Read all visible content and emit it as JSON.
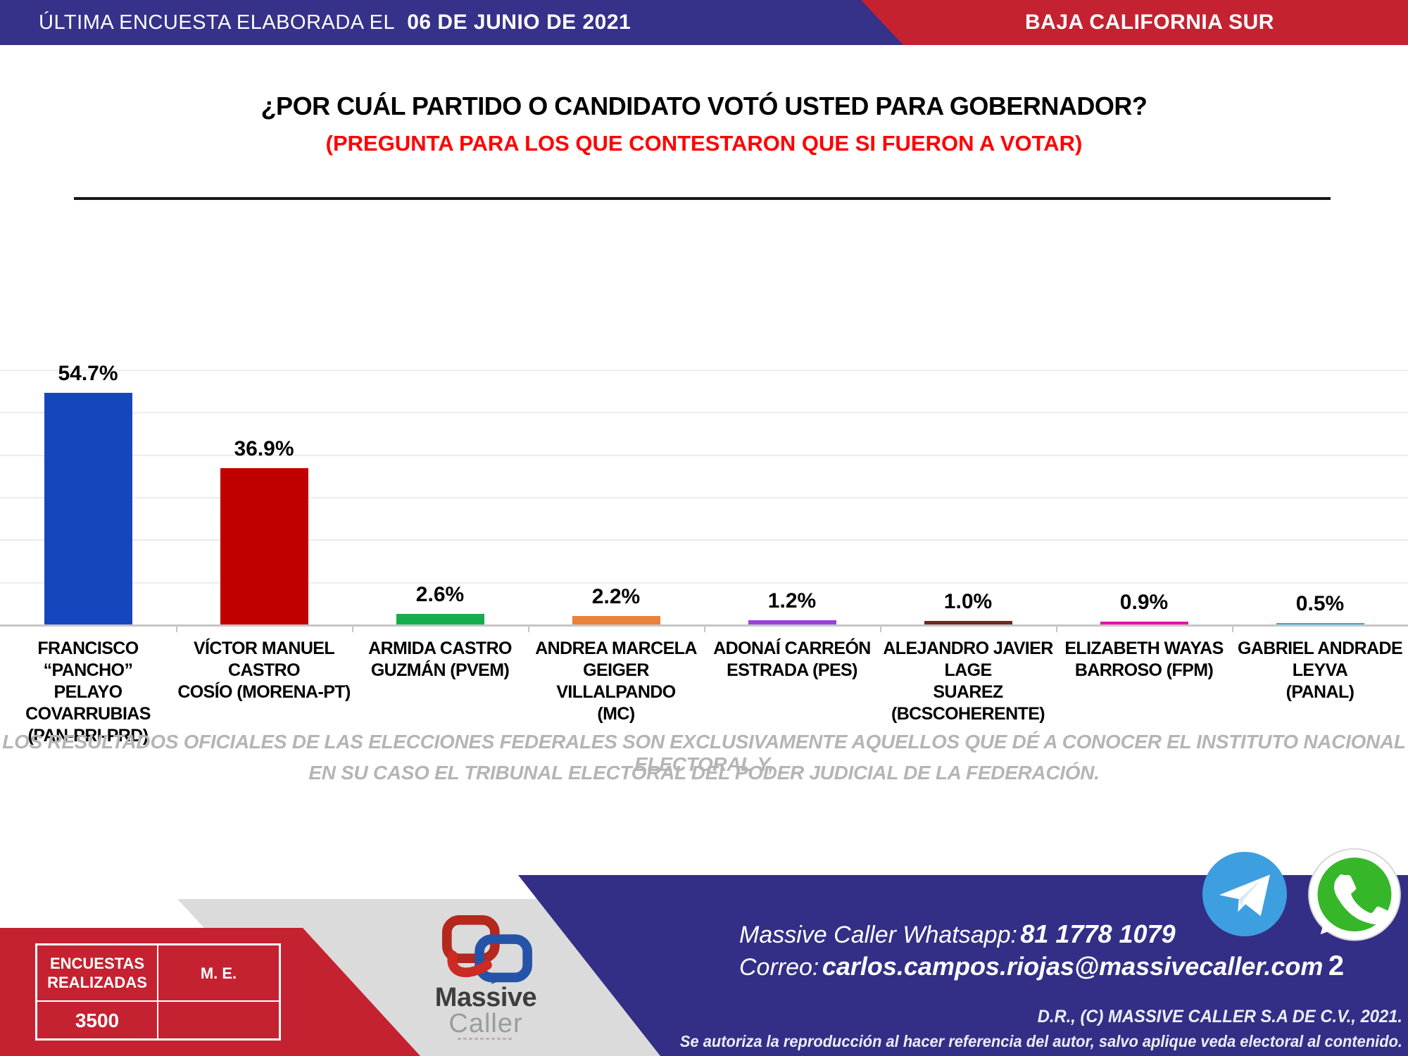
{
  "theme": {
    "banner_blue": "#363189",
    "banner_red": "#C42231",
    "footer_blue": "#332F86",
    "footer_gray": "#DBDBDB",
    "subtitle_red": "#FF0000",
    "telegram_blue": "#3D9FE0",
    "whatsapp_green": "#35B729"
  },
  "header": {
    "left_regular": "ÚLTIMA ENCUESTA ELABORADA EL",
    "left_bold": "06 DE JUNIO DE 2021",
    "right": "BAJA CALIFORNIA SUR"
  },
  "title": "¿POR CUÁL PARTIDO O CANDIDATO VOTÓ USTED PARA GOBERNADOR?",
  "subtitle": "(PREGUNTA PARA LOS QUE CONTESTARON QUE SI FUERON A VOTAR)",
  "chart_data": {
    "type": "bar",
    "title": "",
    "xlabel": "",
    "ylabel": "",
    "ylim": [
      0,
      60
    ],
    "grid": true,
    "grid_interval": 10,
    "legend_position": "none",
    "categories": [
      "FRANCISCO “PANCHO” PELAYO COVARRUBIAS (PAN-PRI-PRD)",
      "VÍCTOR MANUEL CASTRO COSÍO (MORENA-PT)",
      "ARMIDA CASTRO GUZMÁN (PVEM)",
      "ANDREA MARCELA GEIGER VILLALPANDO (MC)",
      "ADONAÍ CARREÓN ESTRADA (PES)",
      "ALEJANDRO JAVIER LAGE SUAREZ (BCSCOHERENTE)",
      "ELIZABETH WAYAS BARROSO (FPM)",
      "GABRIEL ANDRADE LEYVA (PANAL)"
    ],
    "category_lines": [
      [
        "FRANCISCO “PANCHO”",
        "PELAYO COVARRUBIAS",
        "(PAN-PRI-PRD)"
      ],
      [
        "VÍCTOR MANUEL CASTRO",
        "COSÍO (MORENA-PT)"
      ],
      [
        "ARMIDA CASTRO",
        "GUZMÁN (PVEM)"
      ],
      [
        "ANDREA MARCELA",
        "GEIGER VILLALPANDO",
        "(MC)"
      ],
      [
        "ADONAÍ CARREÓN",
        "ESTRADA (PES)"
      ],
      [
        "ALEJANDRO JAVIER LAGE",
        "SUAREZ (BCSCOHERENTE)"
      ],
      [
        "ELIZABETH WAYAS",
        "BARROSO (FPM)"
      ],
      [
        "GABRIEL ANDRADE LEYVA",
        "(PANAL)"
      ]
    ],
    "values": [
      54.7,
      36.9,
      2.6,
      2.2,
      1.2,
      1.0,
      0.9,
      0.5
    ],
    "value_labels": [
      "54.7%",
      "36.9%",
      "2.6%",
      "2.2%",
      "1.2%",
      "1.0%",
      "0.9%",
      "0.5%"
    ],
    "colors": [
      "#1646BE",
      "#C00000",
      "#14AE4D",
      "#E9813B",
      "#9C3FD8",
      "#75231F",
      "#E90FA9",
      "#2EA9E0"
    ]
  },
  "disclaimer": {
    "line1": "LOS RESULTADOS OFICIALES DE LAS ELECCIONES FEDERALES SON EXCLUSIVAMENTE AQUELLOS QUE DÉ A CONOCER EL INSTITUTO NACIONAL ELECTORAL Y,",
    "line2": "EN SU CASO EL TRIBUNAL ELECTORAL DEL PODER JUDICIAL DE LA FEDERACIÓN."
  },
  "footer": {
    "table": {
      "header_left": "ENCUESTAS REALIZADAS",
      "header_right": "M. E.",
      "value_left": "3500",
      "value_right": ""
    },
    "logo": {
      "word1": "Massive",
      "word2": "Caller"
    },
    "whatsapp_label": "Massive Caller Whatsapp:",
    "whatsapp_number": "81 1778 1079",
    "email_label": "Correo:",
    "email": "carlos.campos.riojas@massivecaller.com",
    "page_number": "2",
    "copyright_line1": "D.R., (C) MASSIVE CALLER S.A DE C.V., 2021.",
    "copyright_line2": "Se autoriza la reproducción al hacer referencia del autor, salvo aplique veda electoral al contenido."
  }
}
